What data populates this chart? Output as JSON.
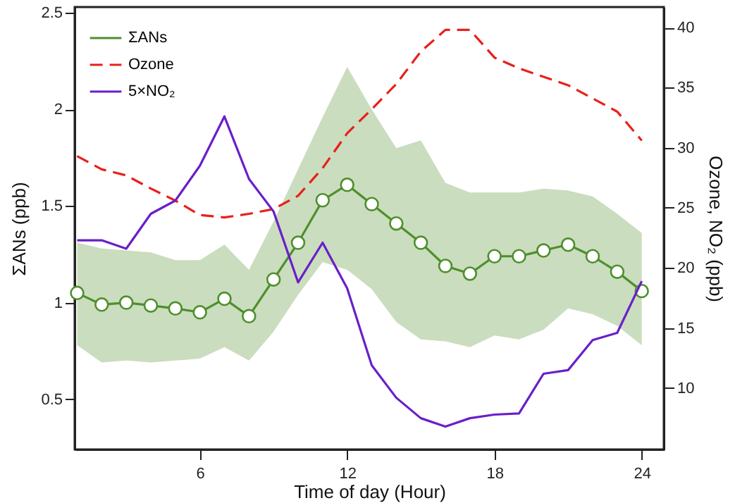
{
  "chart_data": {
    "type": "line",
    "xlabel": "Time of day (Hour)",
    "ylabel": "ΣANs (ppb)",
    "y2label": "Ozone, NO₂ (ppb)",
    "x": [
      1,
      2,
      3,
      4,
      5,
      6,
      7,
      8,
      9,
      10,
      11,
      12,
      13,
      14,
      15,
      16,
      17,
      18,
      19,
      20,
      21,
      22,
      23,
      24
    ],
    "xlim": [
      0.9,
      24.9
    ],
    "xticks": [
      6,
      12,
      18,
      24
    ],
    "ylim": [
      0.24,
      2.53
    ],
    "yticks": [
      0.5,
      1,
      1.5,
      2,
      2.5
    ],
    "y2lim": [
      4.9,
      41.7
    ],
    "y2ticks": [
      10,
      15,
      20,
      25,
      30,
      35,
      40
    ],
    "grid": false,
    "legend": "top left",
    "series": [
      {
        "name": "ΣANs",
        "color": "#4e8f2c",
        "marker": "circle",
        "line_style": "solid",
        "values": [
          1.05,
          0.99,
          1.0,
          0.985,
          0.97,
          0.95,
          1.02,
          0.93,
          1.12,
          1.31,
          1.53,
          1.61,
          1.51,
          1.41,
          1.31,
          1.19,
          1.15,
          1.24,
          1.24,
          1.27,
          1.3,
          1.24,
          1.16,
          1.06
        ],
        "lower": [
          0.78,
          0.69,
          0.7,
          0.69,
          0.7,
          0.71,
          0.77,
          0.7,
          0.85,
          1.04,
          1.21,
          1.17,
          1.07,
          0.9,
          0.81,
          0.8,
          0.77,
          0.83,
          0.81,
          0.86,
          0.97,
          0.94,
          0.88,
          0.78
        ],
        "upper": [
          1.31,
          1.28,
          1.27,
          1.26,
          1.22,
          1.22,
          1.3,
          1.17,
          1.42,
          1.69,
          1.96,
          2.22,
          2.0,
          1.8,
          1.84,
          1.62,
          1.57,
          1.57,
          1.57,
          1.59,
          1.58,
          1.55,
          1.46,
          1.36
        ]
      },
      {
        "name": "Ozone",
        "color": "#e8201a",
        "axis": "y2",
        "marker": "none",
        "line_style": "dashed",
        "values": [
          29.3,
          28.2,
          27.7,
          26.6,
          25.6,
          24.4,
          24.2,
          24.5,
          24.9,
          26.0,
          28.3,
          31.2,
          33.2,
          35.3,
          38.0,
          39.8,
          39.8,
          37.5,
          36.6,
          35.9,
          35.2,
          34.1,
          33.0,
          30.6
        ]
      },
      {
        "name": "5×NO₂",
        "color": "#6a1fc8",
        "axis": "y2",
        "marker": "none",
        "line_style": "solid",
        "values": [
          22.3,
          22.3,
          21.6,
          24.5,
          25.6,
          28.5,
          32.6,
          27.4,
          24.7,
          18.8,
          22.1,
          18.3,
          11.9,
          9.2,
          7.5,
          6.8,
          7.5,
          7.8,
          7.9,
          11.2,
          11.5,
          14.0,
          14.6,
          18.9
        ]
      }
    ]
  }
}
